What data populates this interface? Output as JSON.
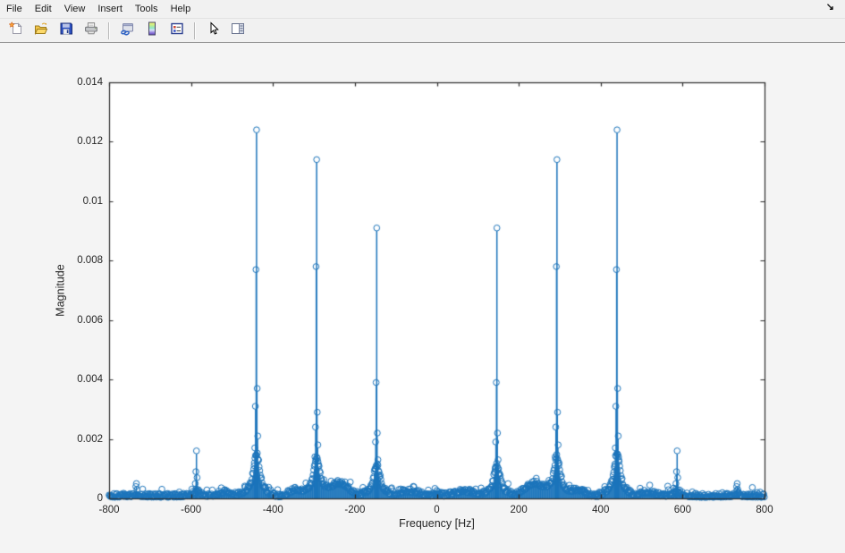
{
  "menubar": {
    "items": [
      "File",
      "Edit",
      "View",
      "Insert",
      "Tools",
      "Help"
    ],
    "dock_arrow_glyph": "↘"
  },
  "toolbar": {
    "icons": [
      "new-figure",
      "open-file",
      "save-figure",
      "print-figure",
      "link",
      "insert-colorbar",
      "insert-legend",
      "select-pointer",
      "figure-panel"
    ]
  },
  "figure": {
    "background": "#f4f4f4",
    "plot_background": "#ffffff",
    "axis_color": "#2b2b2b",
    "text_color": "#262626"
  },
  "chart_data": {
    "type": "stem",
    "title": "",
    "xlabel": "Frequency [Hz]",
    "ylabel": "Magnitude",
    "xlim": [
      -800,
      800
    ],
    "ylim": [
      0,
      0.014
    ],
    "xticks": [
      -800,
      -600,
      -400,
      -200,
      0,
      200,
      400,
      600,
      800
    ],
    "xtick_labels": [
      "-800",
      "-600",
      "-400",
      "-200",
      "0",
      "200",
      "400",
      "600",
      "800"
    ],
    "yticks": [
      0,
      0.002,
      0.004,
      0.006,
      0.008,
      0.01,
      0.012,
      0.014
    ],
    "ytick_labels": [
      "0",
      "0.002",
      "0.004",
      "0.006",
      "0.008",
      "0.01",
      "0.012",
      "0.014"
    ],
    "grid": false,
    "line_color": "#1b74bb",
    "marker": "open-circle",
    "symmetric_spectrum": true,
    "description": "Two-sided FFT magnitude spectrum with harmonic peaks mirrored about 0 Hz",
    "dc_component": 0.00027,
    "peaks": [
      {
        "freq": 146.7,
        "mag": 0.0091,
        "sidelobes": [
          0.0039,
          0.0022,
          0.0019,
          0.0013,
          0.001,
          0.0008
        ]
      },
      {
        "freq": 293.3,
        "mag": 0.0114,
        "sidelobes": [
          0.0078,
          0.0029,
          0.0024,
          0.0018,
          0.0014,
          0.0011
        ]
      },
      {
        "freq": 440.0,
        "mag": 0.0124,
        "sidelobes": [
          0.0077,
          0.0037,
          0.0031,
          0.0021,
          0.0017,
          0.0013,
          0.0011
        ]
      },
      {
        "freq": 586.7,
        "mag": 0.0016,
        "sidelobes": [
          0.0009,
          0.0007,
          0.0005
        ]
      },
      {
        "freq": 733.3,
        "mag": 0.0005,
        "sidelobes": [
          0.0004,
          0.0003
        ]
      }
    ],
    "leakage_skirt": {
      "amp_frac": 0.075,
      "amp_max": 0.00095,
      "width_hz": 9,
      "wide_width_hz": 26
    },
    "noise_floor": {
      "seed": 20,
      "bin_spacing_hz": 1.4648,
      "base": 4e-05,
      "spread": 0.00013,
      "spike_chance": 0.07,
      "spike_amp": 0.00024,
      "bumps": [
        {
          "center_hz": 237,
          "amp": 0.00042,
          "sigma_hz": 22
        },
        {
          "center_hz": 345,
          "amp": 0.0002,
          "sigma_hz": 16
        },
        {
          "center_hz": 68,
          "amp": 0.00016,
          "sigma_hz": 26
        },
        {
          "center_hz": 515,
          "amp": 0.00013,
          "sigma_hz": 18
        }
      ]
    }
  }
}
